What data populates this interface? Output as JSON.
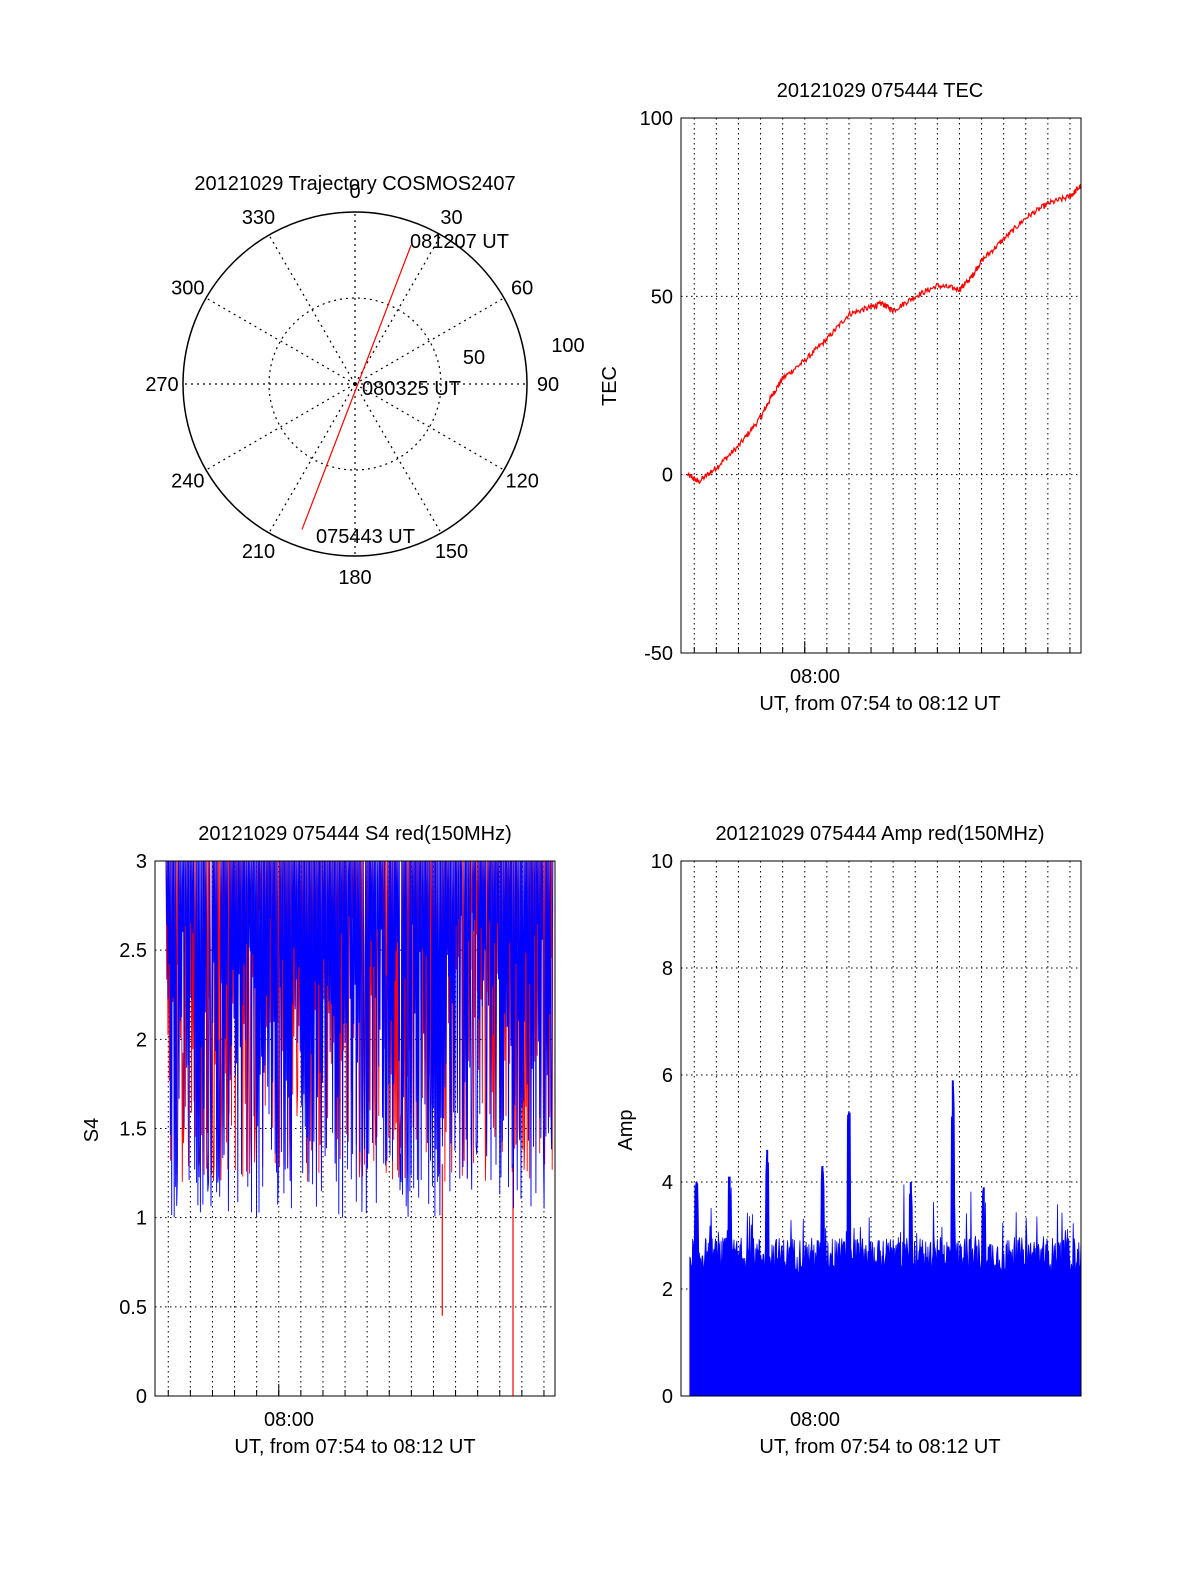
{
  "colors": {
    "red": "#ff0000",
    "blue": "#0000ff",
    "axis": "#000000"
  },
  "chart_data": [
    {
      "type": "polar",
      "title": "20121029 Trajectory COSMOS2407",
      "angle_labels": [
        "0",
        "30",
        "60",
        "90",
        "120",
        "150",
        "180",
        "210",
        "240",
        "270",
        "300",
        "330"
      ],
      "radial_labels": [
        "50",
        "100"
      ],
      "rlim": [
        0,
        100
      ],
      "grid": true,
      "track": {
        "color": "red",
        "start_az": 200,
        "start_r": 90,
        "end_az": 22,
        "end_r": 87
      },
      "annotations": [
        {
          "text": "081207 UT",
          "az": 22,
          "r": 87
        },
        {
          "text": "080325 UT",
          "az": 0,
          "r": 0
        },
        {
          "text": "075443 UT",
          "az": 200,
          "r": 90
        }
      ]
    },
    {
      "type": "line",
      "title": "20121029 075444 TEC",
      "xlabel": "UT, from 07:54 to 08:12 UT",
      "ylabel": "TEC",
      "ylim": [
        -50,
        100
      ],
      "yticks": [
        "100",
        "50",
        "0",
        "-50"
      ],
      "xticks": [
        "08:00"
      ],
      "xlim_min": [
        474.4,
        492.5
      ],
      "grid": true,
      "series": [
        {
          "color": "red",
          "x": [
            474.7,
            475.2,
            476,
            477,
            478,
            478.5,
            479,
            480,
            481,
            482,
            483,
            483.5,
            484,
            485,
            486,
            487,
            487.5,
            488,
            489,
            490,
            491,
            492,
            492.5
          ],
          "y": [
            0,
            -2,
            2,
            8,
            16,
            22,
            27,
            32,
            38,
            45,
            47,
            48,
            46,
            50,
            53,
            52,
            55,
            60,
            66,
            72,
            76,
            78,
            81
          ]
        }
      ]
    },
    {
      "type": "line",
      "title": "20121029 075444 S4 red(150MHz)",
      "xlabel": "UT, from 07:54 to 08:12 UT",
      "ylabel": "S4",
      "ylim": [
        0,
        3
      ],
      "yticks": [
        "3",
        "2.5",
        "2",
        "1.5",
        "1",
        "0.5",
        "0"
      ],
      "xticks": [
        "08:00"
      ],
      "xlim_min": [
        474.4,
        492.5
      ],
      "grid": true,
      "series": [
        {
          "color": "red",
          "band_low": 1.2,
          "band_high": 3.0,
          "dips": [
            {
              "x": 487.4,
              "y": 0.45
            },
            {
              "x": 490.6,
              "y": 0
            }
          ]
        },
        {
          "color": "blue",
          "band_low": 1.0,
          "band_high": 3.0,
          "dips": []
        }
      ]
    },
    {
      "type": "bar",
      "title": "20121029 075444 Amp red(150MHz)",
      "xlabel": "UT, from 07:54 to 08:12 UT",
      "ylabel": "Amp",
      "ylim": [
        0,
        10
      ],
      "yticks": [
        "10",
        "8",
        "6",
        "4",
        "2",
        "0"
      ],
      "xticks": [
        "08:00"
      ],
      "xlim_min": [
        474.4,
        492.5
      ],
      "grid": true,
      "series": [
        {
          "color": "blue",
          "base_level": 2.7,
          "peaks": [
            {
              "x": 478.3,
              "y": 4.6
            },
            {
              "x": 482.0,
              "y": 5.3
            },
            {
              "x": 486.7,
              "y": 5.9
            },
            {
              "x": 480.8,
              "y": 4.3
            },
            {
              "x": 475.1,
              "y": 4.0
            },
            {
              "x": 476.6,
              "y": 4.1
            },
            {
              "x": 484.8,
              "y": 4.0
            },
            {
              "x": 488.1,
              "y": 3.9
            }
          ]
        }
      ]
    }
  ]
}
